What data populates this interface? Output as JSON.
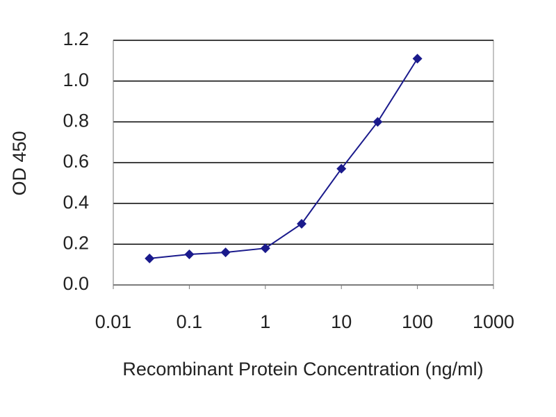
{
  "chart_data": {
    "type": "line",
    "x_label": "Recombinant Protein Concentration (ng/ml)",
    "y_label": "OD 450",
    "xscale": "log",
    "x": [
      0.03,
      0.1,
      0.3,
      1,
      3,
      10,
      30,
      100
    ],
    "series": [
      {
        "color": "#1a1a8c",
        "values": [
          0.13,
          0.15,
          0.16,
          0.18,
          0.3,
          0.57,
          0.8,
          1.11
        ]
      }
    ],
    "xlim": [
      0.01,
      1000
    ],
    "xticks": [
      0.01,
      0.1,
      1,
      10,
      100,
      1000
    ],
    "ylim": [
      0,
      1.2
    ],
    "yticks": [
      {
        "value": 0,
        "label": "0.0"
      },
      0.2,
      0.4,
      0.6,
      0.8,
      {
        "value": 1,
        "label": "1.0"
      },
      1.2
    ],
    "grid": true
  }
}
